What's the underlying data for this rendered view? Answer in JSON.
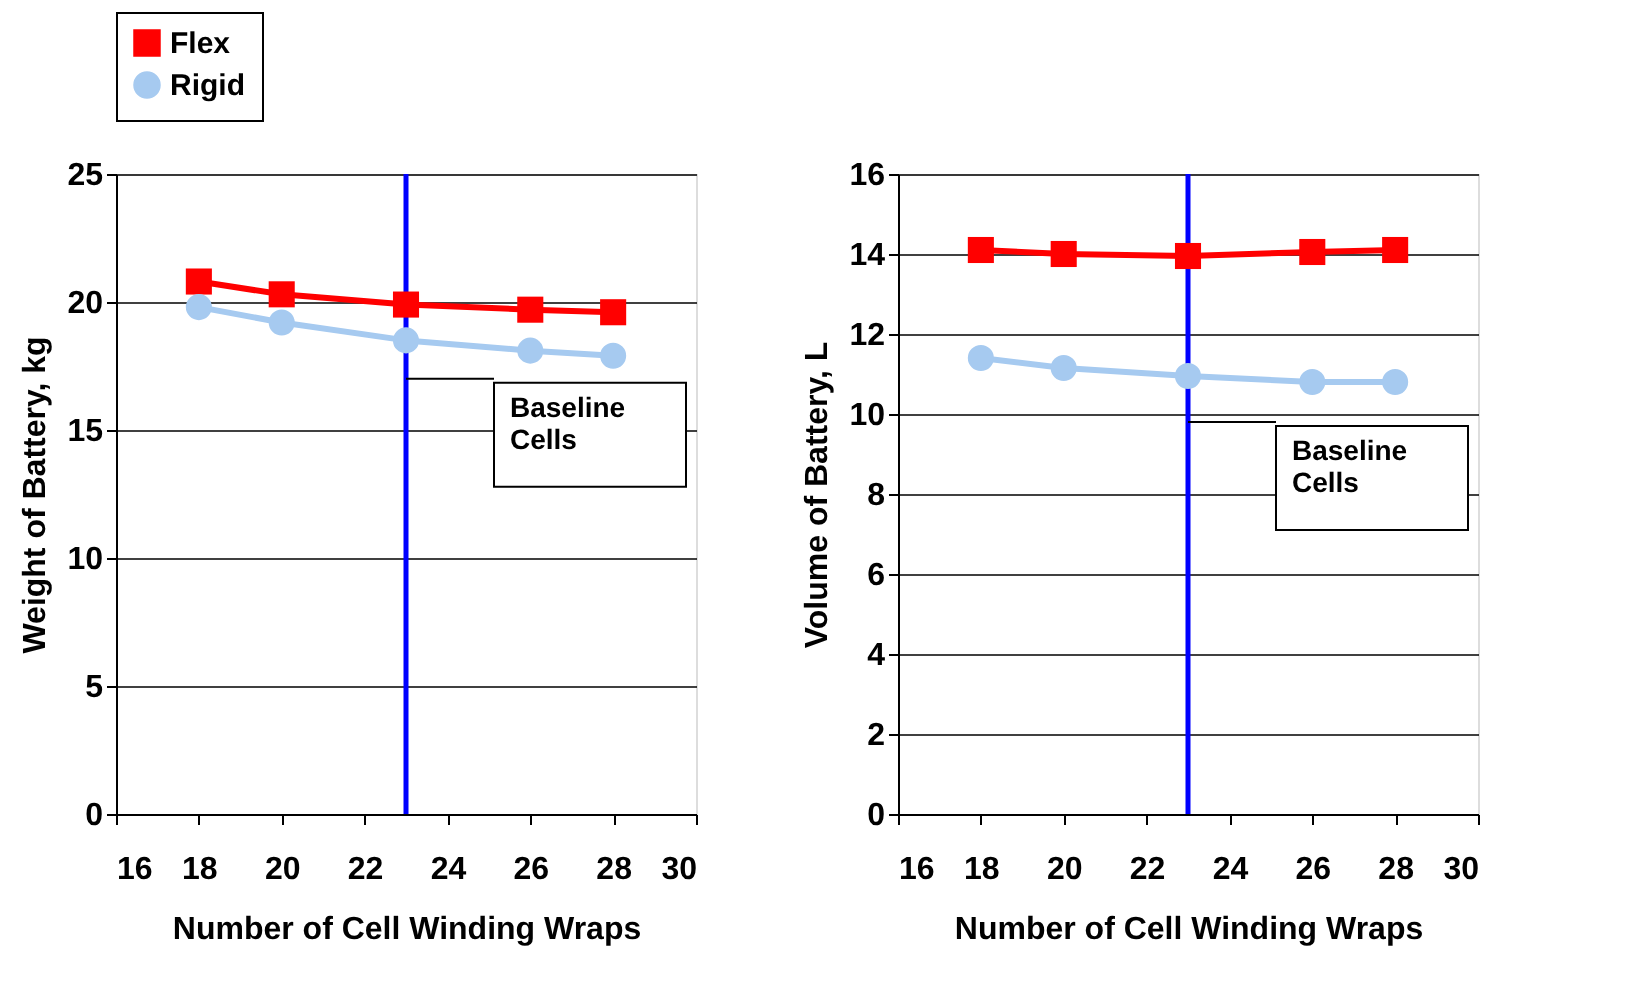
{
  "chart_data": [
    {
      "type": "line",
      "xlabel": "Number of Cell Winding Wraps",
      "ylabel": "Weight of Battery, kg",
      "x": [
        18,
        20,
        23,
        26,
        28
      ],
      "xlim": [
        16,
        30
      ],
      "xticks": [
        16,
        18,
        20,
        22,
        24,
        26,
        28,
        30
      ],
      "ylim": [
        0,
        25
      ],
      "yticks": [
        0,
        5,
        10,
        15,
        20,
        25
      ],
      "grid": "y",
      "legend": "top",
      "series": [
        {
          "name": "Flex",
          "color": "#ff0000",
          "marker": "square",
          "values": [
            20.8,
            20.3,
            19.9,
            19.7,
            19.6
          ]
        },
        {
          "name": "Rigid",
          "color": "#a6caf0",
          "marker": "circle",
          "values": [
            19.8,
            19.2,
            18.5,
            18.1,
            17.9
          ]
        }
      ],
      "ref_lines": [
        {
          "axis": "x",
          "value": 23,
          "color": "#0000ff"
        }
      ],
      "annotations": [
        {
          "text": "Baseline Cells",
          "x": 23,
          "y": 17
        }
      ]
    },
    {
      "type": "line",
      "xlabel": "Number of Cell Winding Wraps",
      "ylabel": "Volume of Battery, L",
      "x": [
        18,
        20,
        23,
        26,
        28
      ],
      "xlim": [
        16,
        30
      ],
      "xticks": [
        16,
        18,
        20,
        22,
        24,
        26,
        28,
        30
      ],
      "ylim": [
        0,
        16
      ],
      "yticks": [
        0,
        2,
        4,
        6,
        8,
        10,
        12,
        14,
        16
      ],
      "grid": "y",
      "legend": "top",
      "series": [
        {
          "name": "Flex",
          "color": "#ff0000",
          "marker": "square",
          "values": [
            14.1,
            14.0,
            13.95,
            14.05,
            14.1
          ]
        },
        {
          "name": "Rigid",
          "color": "#a6caf0",
          "marker": "circle",
          "values": [
            11.4,
            11.15,
            10.95,
            10.8,
            10.8
          ]
        }
      ],
      "ref_lines": [
        {
          "axis": "x",
          "value": 23,
          "color": "#0000ff"
        }
      ],
      "annotations": [
        {
          "text": "Baseline Cells",
          "x": 23,
          "y": 9.8
        }
      ]
    }
  ]
}
